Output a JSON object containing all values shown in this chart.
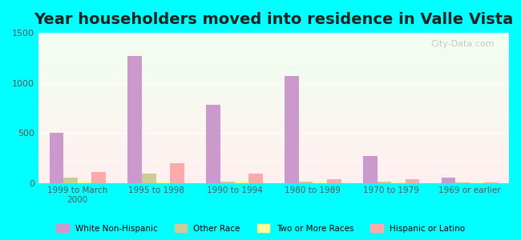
{
  "title": "Year householders moved into residence in Valle Vista",
  "categories": [
    "1999 to March\n2000",
    "1995 to 1998",
    "1990 to 1994",
    "1980 to 1989",
    "1970 to 1979",
    "1969 or earlier"
  ],
  "series": {
    "White Non-Hispanic": [
      500,
      1270,
      780,
      1070,
      270,
      55
    ],
    "Other Race": [
      55,
      90,
      10,
      10,
      10,
      5
    ],
    "Two or More Races": [
      20,
      15,
      20,
      5,
      5,
      3
    ],
    "Hispanic or Latino": [
      110,
      200,
      90,
      35,
      40,
      5
    ]
  },
  "colors": {
    "White Non-Hispanic": "#cc99cc",
    "Other Race": "#cccc99",
    "Two or More Races": "#ffff99",
    "Hispanic or Latino": "#ffaaaa"
  },
  "ylim": [
    0,
    1500
  ],
  "yticks": [
    0,
    500,
    1000,
    1500
  ],
  "background_color": "#00ffff",
  "watermark": "City-Data.com",
  "bar_width": 0.18,
  "title_fontsize": 14
}
